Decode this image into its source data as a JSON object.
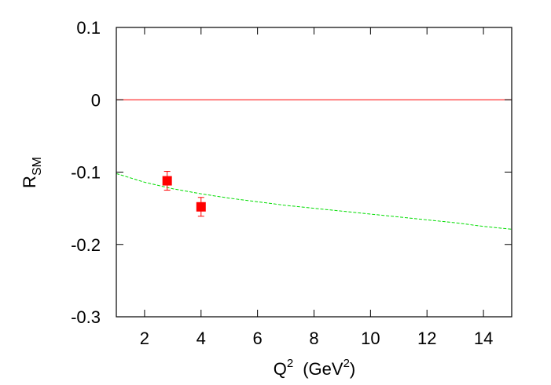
{
  "chart_data": {
    "type": "scatter",
    "xlabel": {
      "base": "Q",
      "sup": "2",
      "unit": "(GeV",
      "unit_sup": "2",
      "close": ")"
    },
    "ylabel": {
      "base": "R",
      "sub": "SM"
    },
    "xlim": [
      1,
      15
    ],
    "xticks": [
      2,
      4,
      6,
      8,
      10,
      12,
      14
    ],
    "ylim": [
      -0.3,
      0.1
    ],
    "yticks": [
      -0.3,
      -0.2,
      -0.1,
      0,
      0.1
    ],
    "reference_line": {
      "value": 0,
      "color": "#ff0000"
    },
    "data_points": {
      "x": [
        2.8,
        4.0
      ],
      "values": [
        -0.112,
        -0.148
      ],
      "errors": [
        0.013,
        0.013
      ],
      "color": "#ff0000"
    },
    "curve": {
      "x": [
        1,
        2,
        3,
        4,
        5,
        6,
        7,
        8,
        9,
        10,
        11,
        12,
        13,
        14,
        15
      ],
      "values": [
        -0.102,
        -0.114,
        -0.123,
        -0.13,
        -0.136,
        -0.141,
        -0.146,
        -0.15,
        -0.154,
        -0.158,
        -0.162,
        -0.166,
        -0.17,
        -0.175,
        -0.179
      ],
      "color": "#00dd00"
    }
  }
}
